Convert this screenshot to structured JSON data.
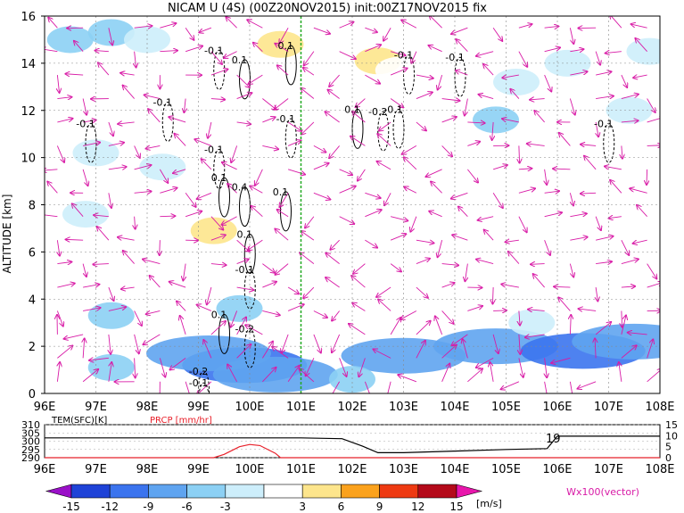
{
  "header": {
    "title": "NICAM U (4S) (00Z20NOV2015) init:00Z17NOV2015 fix"
  },
  "chart_data": [
    {
      "type": "heatmap",
      "title": "NICAM U (4S) (00Z20NOV2015) init:00Z17NOV2015 fix",
      "ylabel": "ALTITUDE [km]",
      "x_ticks": [
        "96E",
        "97E",
        "98E",
        "99E",
        "100E",
        "101E",
        "102E",
        "103E",
        "104E",
        "105E",
        "106E",
        "107E",
        "108E"
      ],
      "y_ticks": [
        0,
        2,
        4,
        6,
        8,
        10,
        12,
        14,
        16
      ],
      "xlim": [
        96,
        108
      ],
      "ylim": [
        0,
        16
      ],
      "grid": true,
      "marker_longitude": 101,
      "shaded_regions": [
        {
          "x": 96.5,
          "y": 15.0,
          "value": -6
        },
        {
          "x": 97.3,
          "y": 15.3,
          "value": -6
        },
        {
          "x": 98.0,
          "y": 15.0,
          "value": -3
        },
        {
          "x": 97.0,
          "y": 10.2,
          "value": -3
        },
        {
          "x": 98.3,
          "y": 9.6,
          "value": -3
        },
        {
          "x": 96.8,
          "y": 7.6,
          "value": -3
        },
        {
          "x": 100.6,
          "y": 14.8,
          "value": 6
        },
        {
          "x": 101.5,
          "y": 13.9,
          "value": 3
        },
        {
          "x": 102.5,
          "y": 14.1,
          "value": 6
        },
        {
          "x": 102.9,
          "y": 13.7,
          "value": 3
        },
        {
          "x": 100.3,
          "y": 13.2,
          "value": 3
        },
        {
          "x": 99.3,
          "y": 6.9,
          "value": 6
        },
        {
          "x": 99.6,
          "y": 5.6,
          "value": 3
        },
        {
          "x": 103.8,
          "y": 5.4,
          "value": 3
        },
        {
          "x": 102.0,
          "y": 11.0,
          "value": 3
        },
        {
          "x": 104.8,
          "y": 11.6,
          "value": -6
        },
        {
          "x": 106.2,
          "y": 14.0,
          "value": -3
        },
        {
          "x": 107.8,
          "y": 14.5,
          "value": -3
        },
        {
          "x": 107.4,
          "y": 12.0,
          "value": -3
        },
        {
          "x": 105.2,
          "y": 13.2,
          "value": -3
        },
        {
          "x": 97.3,
          "y": 3.3,
          "value": -6
        },
        {
          "x": 99.8,
          "y": 3.6,
          "value": -6
        },
        {
          "x": 99.9,
          "y": 1.2,
          "value": -12
        },
        {
          "x": 99.2,
          "y": 1.7,
          "value": -9
        },
        {
          "x": 100.5,
          "y": 0.8,
          "value": -9
        },
        {
          "x": 97.3,
          "y": 1.1,
          "value": -6
        },
        {
          "x": 103.0,
          "y": 1.6,
          "value": -9
        },
        {
          "x": 104.8,
          "y": 2.0,
          "value": -9
        },
        {
          "x": 106.5,
          "y": 1.8,
          "value": -12
        },
        {
          "x": 107.5,
          "y": 2.2,
          "value": -9
        },
        {
          "x": 102.0,
          "y": 0.6,
          "value": -6
        },
        {
          "x": 105.5,
          "y": 3.0,
          "value": -3
        }
      ],
      "contour_labels": [
        {
          "x": 96.8,
          "y": 11.3,
          "text": "-0.1"
        },
        {
          "x": 98.3,
          "y": 12.2,
          "text": "-0.1"
        },
        {
          "x": 99.3,
          "y": 14.4,
          "text": "-0.1"
        },
        {
          "x": 99.3,
          "y": 10.2,
          "text": "-0.1"
        },
        {
          "x": 99.4,
          "y": 9.0,
          "text": "0.1"
        },
        {
          "x": 99.8,
          "y": 14.0,
          "text": "0.1"
        },
        {
          "x": 100.7,
          "y": 14.6,
          "text": "0.1"
        },
        {
          "x": 100.7,
          "y": 11.5,
          "text": "-0.1"
        },
        {
          "x": 100.6,
          "y": 8.4,
          "text": "0.1"
        },
        {
          "x": 99.8,
          "y": 8.6,
          "text": "0.4"
        },
        {
          "x": 99.9,
          "y": 6.6,
          "text": "0.1"
        },
        {
          "x": 99.9,
          "y": 5.1,
          "text": "-0.1"
        },
        {
          "x": 99.4,
          "y": 3.2,
          "text": "0.1"
        },
        {
          "x": 99.9,
          "y": 2.6,
          "text": "-0.2"
        },
        {
          "x": 102.0,
          "y": 11.9,
          "text": "0.1"
        },
        {
          "x": 102.5,
          "y": 11.8,
          "text": "-0.2"
        },
        {
          "x": 102.8,
          "y": 11.9,
          "text": "-0.1"
        },
        {
          "x": 103.0,
          "y": 14.2,
          "text": "-0.1"
        },
        {
          "x": 104.0,
          "y": 14.1,
          "text": "-0.1"
        },
        {
          "x": 106.9,
          "y": 11.3,
          "text": "-0.1"
        },
        {
          "x": 99.0,
          "y": 0.8,
          "text": "-0.2"
        },
        {
          "x": 99.0,
          "y": 0.3,
          "text": "-0.1"
        }
      ]
    },
    {
      "type": "line",
      "left_label": "TEM(SFC)[K]",
      "right_label": "PRCP [mm/hr]",
      "x_ticks": [
        "96E",
        "97E",
        "98E",
        "99E",
        "100E",
        "101E",
        "102E",
        "103E",
        "104E",
        "105E",
        "106E",
        "107E",
        "108E"
      ],
      "left_y_ticks": [
        290,
        295,
        300,
        305,
        310
      ],
      "right_y_ticks": [
        0,
        5,
        10,
        15
      ],
      "annotation": "19",
      "series": [
        {
          "name": "TEM(SFC)[K]",
          "x": [
            96,
            97,
            98,
            99,
            100,
            101,
            101.8,
            102.2,
            102.5,
            103,
            104,
            105,
            105.8,
            106,
            107,
            108
          ],
          "y": [
            302,
            302,
            302,
            302,
            302,
            302,
            301.5,
            297,
            293,
            293,
            294,
            295,
            295.5,
            303,
            303,
            303
          ]
        },
        {
          "name": "PRCP [mm/hr]",
          "x": [
            96,
            99.3,
            99.5,
            99.8,
            100.0,
            100.2,
            100.5,
            100.6,
            108
          ],
          "y": [
            0,
            0,
            1.5,
            5,
            6,
            5.5,
            2,
            0,
            0
          ]
        }
      ]
    }
  ],
  "colorbar": {
    "levels": [
      "-15",
      "-12",
      "-9",
      "-6",
      "-3",
      "3",
      "6",
      "9",
      "12",
      "15"
    ],
    "colors": [
      "#9a10c8",
      "#1f43d7",
      "#3b74ee",
      "#5fa4f0",
      "#8cd0f4",
      "#cdeefb",
      "#ffffff",
      "#fde58c",
      "#fba21d",
      "#ee3a12",
      "#b40a1a",
      "#e816ac"
    ],
    "unit": "[m/s]",
    "vector_label": "Wx100(vector)"
  }
}
